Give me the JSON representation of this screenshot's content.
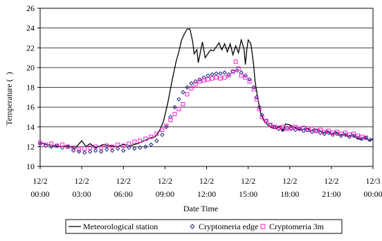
{
  "chart_data": {
    "type": "line",
    "xlabel": "Date Time",
    "ylabel": "Temperature (  )",
    "ylim": [
      10,
      26
    ],
    "yticks": [
      10,
      12,
      14,
      16,
      18,
      20,
      22,
      24,
      26
    ],
    "xlim": [
      0,
      24
    ],
    "xticks": [
      {
        "x": 0,
        "line1": "12/2",
        "line2": "00:00"
      },
      {
        "x": 3,
        "line1": "12/2",
        "line2": "03:00"
      },
      {
        "x": 6,
        "line1": "12/2",
        "line2": "06:00"
      },
      {
        "x": 9,
        "line1": "12/2",
        "line2": "09:00"
      },
      {
        "x": 12,
        "line1": "12/2",
        "line2": "12:00"
      },
      {
        "x": 15,
        "line1": "12/2",
        "line2": "15:00"
      },
      {
        "x": 18,
        "line1": "12/2",
        "line2": "18:00"
      },
      {
        "x": 21,
        "line1": "12/2",
        "line2": "21:00"
      },
      {
        "x": 24,
        "line1": "12/3",
        "line2": "00:00"
      }
    ],
    "grid": "horizontal",
    "legend_position": "bottom",
    "series": [
      {
        "name": "Meteorological station",
        "marker": "line",
        "color": "#000000",
        "points": [
          [
            0.0,
            12.4
          ],
          [
            0.5,
            12.2
          ],
          [
            1.0,
            12.1
          ],
          [
            1.5,
            12.0
          ],
          [
            2.0,
            12.1
          ],
          [
            2.5,
            11.8
          ],
          [
            3.0,
            12.6
          ],
          [
            3.3,
            12.0
          ],
          [
            3.6,
            12.3
          ],
          [
            4.0,
            11.9
          ],
          [
            4.5,
            12.2
          ],
          [
            5.0,
            12.1
          ],
          [
            5.5,
            12.0
          ],
          [
            6.0,
            12.2
          ],
          [
            6.5,
            12.1
          ],
          [
            7.0,
            12.3
          ],
          [
            7.5,
            12.6
          ],
          [
            8.0,
            12.9
          ],
          [
            8.3,
            13.0
          ],
          [
            8.6,
            13.6
          ],
          [
            8.9,
            14.6
          ],
          [
            9.2,
            16.4
          ],
          [
            9.5,
            18.6
          ],
          [
            9.8,
            20.6
          ],
          [
            10.0,
            21.6
          ],
          [
            10.2,
            22.8
          ],
          [
            10.4,
            23.4
          ],
          [
            10.6,
            23.9
          ],
          [
            10.8,
            23.9
          ],
          [
            11.0,
            22.6
          ],
          [
            11.1,
            21.4
          ],
          [
            11.3,
            21.8
          ],
          [
            11.4,
            20.5
          ],
          [
            11.5,
            21.2
          ],
          [
            11.7,
            22.6
          ],
          [
            11.9,
            21.0
          ],
          [
            12.1,
            21.4
          ],
          [
            12.3,
            21.8
          ],
          [
            12.5,
            21.7
          ],
          [
            12.7,
            22.1
          ],
          [
            12.9,
            22.5
          ],
          [
            13.1,
            21.8
          ],
          [
            13.3,
            22.4
          ],
          [
            13.5,
            21.6
          ],
          [
            13.7,
            22.4
          ],
          [
            13.9,
            21.3
          ],
          [
            14.1,
            22.2
          ],
          [
            14.3,
            21.5
          ],
          [
            14.5,
            22.8
          ],
          [
            14.7,
            21.9
          ],
          [
            14.8,
            20.3
          ],
          [
            14.9,
            21.8
          ],
          [
            15.0,
            22.8
          ],
          [
            15.2,
            22.4
          ],
          [
            15.4,
            20.2
          ],
          [
            15.5,
            18.6
          ],
          [
            15.7,
            16.8
          ],
          [
            15.9,
            15.4
          ],
          [
            16.1,
            14.7
          ],
          [
            16.4,
            14.2
          ],
          [
            16.7,
            13.9
          ],
          [
            17.0,
            13.8
          ],
          [
            17.3,
            14.1
          ],
          [
            17.5,
            13.6
          ],
          [
            17.7,
            14.3
          ],
          [
            18.0,
            14.2
          ],
          [
            18.3,
            14.0
          ],
          [
            18.6,
            13.8
          ],
          [
            18.9,
            13.7
          ],
          [
            19.2,
            13.9
          ],
          [
            19.5,
            13.6
          ],
          [
            19.8,
            13.8
          ],
          [
            20.1,
            13.7
          ],
          [
            20.4,
            13.4
          ],
          [
            20.7,
            13.6
          ],
          [
            21.0,
            13.2
          ],
          [
            21.3,
            13.5
          ],
          [
            21.6,
            13.1
          ],
          [
            21.9,
            13.3
          ],
          [
            22.2,
            13.0
          ],
          [
            22.5,
            13.2
          ],
          [
            22.8,
            12.9
          ],
          [
            23.1,
            12.7
          ],
          [
            23.4,
            13.0
          ],
          [
            23.7,
            12.6
          ],
          [
            24.0,
            12.8
          ]
        ]
      },
      {
        "name": "Cryptomeria edge",
        "marker": "diamond",
        "color": "#1a237e",
        "points": [
          [
            0.0,
            12.3
          ],
          [
            0.4,
            12.1
          ],
          [
            0.8,
            12.0
          ],
          [
            1.2,
            12.1
          ],
          [
            1.6,
            11.9
          ],
          [
            2.0,
            12.0
          ],
          [
            2.4,
            11.6
          ],
          [
            2.8,
            11.5
          ],
          [
            3.2,
            11.4
          ],
          [
            3.6,
            11.5
          ],
          [
            4.0,
            11.6
          ],
          [
            4.4,
            11.5
          ],
          [
            4.8,
            11.7
          ],
          [
            5.2,
            11.6
          ],
          [
            5.6,
            11.8
          ],
          [
            6.0,
            11.6
          ],
          [
            6.4,
            11.9
          ],
          [
            6.8,
            11.8
          ],
          [
            7.2,
            11.9
          ],
          [
            7.6,
            12.0
          ],
          [
            8.0,
            12.2
          ],
          [
            8.4,
            12.6
          ],
          [
            8.8,
            13.2
          ],
          [
            9.1,
            14.0
          ],
          [
            9.4,
            15.0
          ],
          [
            9.7,
            16.0
          ],
          [
            10.0,
            16.8
          ],
          [
            10.3,
            17.5
          ],
          [
            10.6,
            18.0
          ],
          [
            10.9,
            18.4
          ],
          [
            11.2,
            18.6
          ],
          [
            11.5,
            18.8
          ],
          [
            11.8,
            19.0
          ],
          [
            12.1,
            19.2
          ],
          [
            12.4,
            19.3
          ],
          [
            12.7,
            19.4
          ],
          [
            13.0,
            19.4
          ],
          [
            13.3,
            19.5
          ],
          [
            13.6,
            19.3
          ],
          [
            13.9,
            19.6
          ],
          [
            14.2,
            19.7
          ],
          [
            14.5,
            19.5
          ],
          [
            14.8,
            19.2
          ],
          [
            15.1,
            18.8
          ],
          [
            15.4,
            18.0
          ],
          [
            15.6,
            17.0
          ],
          [
            15.8,
            16.0
          ],
          [
            16.0,
            15.2
          ],
          [
            16.3,
            14.6
          ],
          [
            16.6,
            14.2
          ],
          [
            16.9,
            14.0
          ],
          [
            17.2,
            13.8
          ],
          [
            17.5,
            13.7
          ],
          [
            17.8,
            13.9
          ],
          [
            18.1,
            13.8
          ],
          [
            18.4,
            13.7
          ],
          [
            18.7,
            13.8
          ],
          [
            19.0,
            13.6
          ],
          [
            19.3,
            13.7
          ],
          [
            19.6,
            13.5
          ],
          [
            19.9,
            13.6
          ],
          [
            20.2,
            13.4
          ],
          [
            20.5,
            13.3
          ],
          [
            20.8,
            13.4
          ],
          [
            21.1,
            13.2
          ],
          [
            21.4,
            13.3
          ],
          [
            21.7,
            13.1
          ],
          [
            22.0,
            13.2
          ],
          [
            22.3,
            13.0
          ],
          [
            22.6,
            13.1
          ],
          [
            22.9,
            12.9
          ],
          [
            23.2,
            12.8
          ],
          [
            23.5,
            12.9
          ],
          [
            23.8,
            12.7
          ]
        ]
      },
      {
        "name": "Cryptomeria 3m",
        "marker": "square",
        "color": "#ee22cc",
        "points": [
          [
            0.0,
            12.4
          ],
          [
            0.4,
            12.2
          ],
          [
            0.8,
            12.3
          ],
          [
            1.2,
            12.1
          ],
          [
            1.6,
            12.2
          ],
          [
            2.0,
            12.0
          ],
          [
            2.4,
            11.9
          ],
          [
            2.8,
            11.7
          ],
          [
            3.2,
            11.8
          ],
          [
            3.6,
            11.9
          ],
          [
            4.0,
            12.0
          ],
          [
            4.4,
            11.9
          ],
          [
            4.8,
            12.1
          ],
          [
            5.2,
            12.0
          ],
          [
            5.6,
            12.2
          ],
          [
            6.0,
            12.1
          ],
          [
            6.4,
            12.3
          ],
          [
            6.8,
            12.5
          ],
          [
            7.2,
            12.6
          ],
          [
            7.6,
            12.8
          ],
          [
            8.0,
            13.0
          ],
          [
            8.4,
            13.3
          ],
          [
            8.8,
            13.7
          ],
          [
            9.1,
            14.1
          ],
          [
            9.4,
            14.7
          ],
          [
            9.7,
            15.3
          ],
          [
            10.0,
            15.8
          ],
          [
            10.3,
            16.3
          ],
          [
            10.6,
            17.3
          ],
          [
            10.9,
            17.9
          ],
          [
            11.2,
            18.3
          ],
          [
            11.5,
            18.6
          ],
          [
            11.8,
            18.7
          ],
          [
            12.1,
            18.8
          ],
          [
            12.4,
            18.9
          ],
          [
            12.7,
            19.0
          ],
          [
            13.0,
            18.9
          ],
          [
            13.3,
            19.0
          ],
          [
            13.6,
            19.2
          ],
          [
            13.9,
            19.6
          ],
          [
            14.1,
            20.6
          ],
          [
            14.3,
            19.9
          ],
          [
            14.5,
            19.2
          ],
          [
            14.8,
            19.0
          ],
          [
            15.1,
            18.6
          ],
          [
            15.4,
            17.8
          ],
          [
            15.6,
            16.8
          ],
          [
            15.8,
            15.8
          ],
          [
            16.0,
            15.0
          ],
          [
            16.3,
            14.6
          ],
          [
            16.6,
            14.2
          ],
          [
            16.9,
            14.0
          ],
          [
            17.2,
            13.9
          ],
          [
            17.5,
            14.0
          ],
          [
            17.8,
            13.8
          ],
          [
            18.1,
            13.9
          ],
          [
            18.4,
            14.0
          ],
          [
            18.7,
            13.8
          ],
          [
            19.0,
            13.9
          ],
          [
            19.3,
            13.7
          ],
          [
            19.6,
            13.8
          ],
          [
            19.9,
            13.6
          ],
          [
            20.2,
            13.7
          ],
          [
            20.5,
            13.5
          ],
          [
            20.8,
            13.6
          ],
          [
            21.1,
            13.4
          ],
          [
            21.4,
            13.5
          ],
          [
            21.7,
            13.3
          ],
          [
            22.0,
            13.4
          ],
          [
            22.3,
            13.2
          ],
          [
            22.6,
            13.3
          ],
          [
            22.9,
            13.1
          ],
          [
            23.2,
            13.0
          ],
          [
            23.5,
            12.9
          ]
        ]
      }
    ]
  }
}
